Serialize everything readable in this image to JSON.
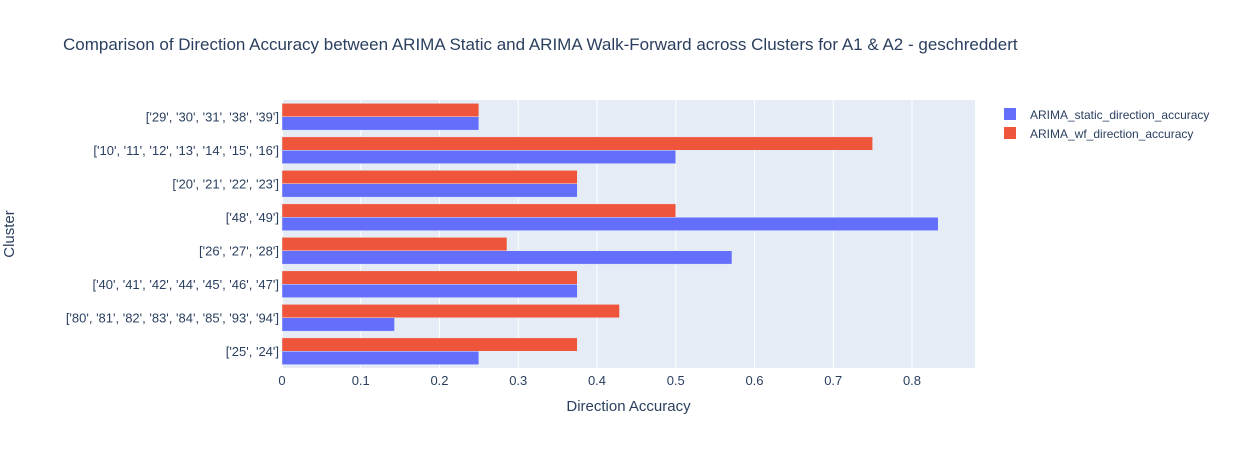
{
  "chart_data": {
    "type": "bar",
    "orientation": "horizontal",
    "barmode": "group",
    "title": "Comparison of Direction Accuracy between ARIMA Static and ARIMA Walk-Forward across Clusters for A1 & A2 -  geschreddert",
    "xlabel": "Direction Accuracy",
    "ylabel": "Cluster",
    "xlim": [
      0,
      0.88
    ],
    "xticks": [
      0,
      0.1,
      0.2,
      0.3,
      0.4,
      0.5,
      0.6,
      0.7,
      0.8
    ],
    "xtick_labels": [
      "0",
      "0.1",
      "0.2",
      "0.3",
      "0.4",
      "0.5",
      "0.6",
      "0.7",
      "0.8"
    ],
    "grid": true,
    "legend_position": "top-right",
    "categories": [
      "['29', '30', '31', '38', '39']",
      "['10', '11', '12', '13', '14', '15', '16']",
      "['20', '21', '22', '23']",
      "['48', '49']",
      "['26', '27', '28']",
      "['40', '41', '42', '44', '45', '46', '47']",
      "['80', '81', '82', '83', '84', '85', '93', '94']",
      "['25', '24']"
    ],
    "series": [
      {
        "name": "ARIMA_static_direction_accuracy",
        "color": "#636efa",
        "values": [
          0.25,
          0.5,
          0.375,
          0.8333,
          0.5714,
          0.375,
          0.1429,
          0.25
        ]
      },
      {
        "name": "ARIMA_wf_direction_accuracy",
        "color": "#ef553b",
        "values": [
          0.25,
          0.75,
          0.375,
          0.5,
          0.2857,
          0.375,
          0.4286,
          0.375
        ]
      }
    ],
    "plot_background": "#e5ecf6",
    "text_color": "#2a3f5f"
  }
}
